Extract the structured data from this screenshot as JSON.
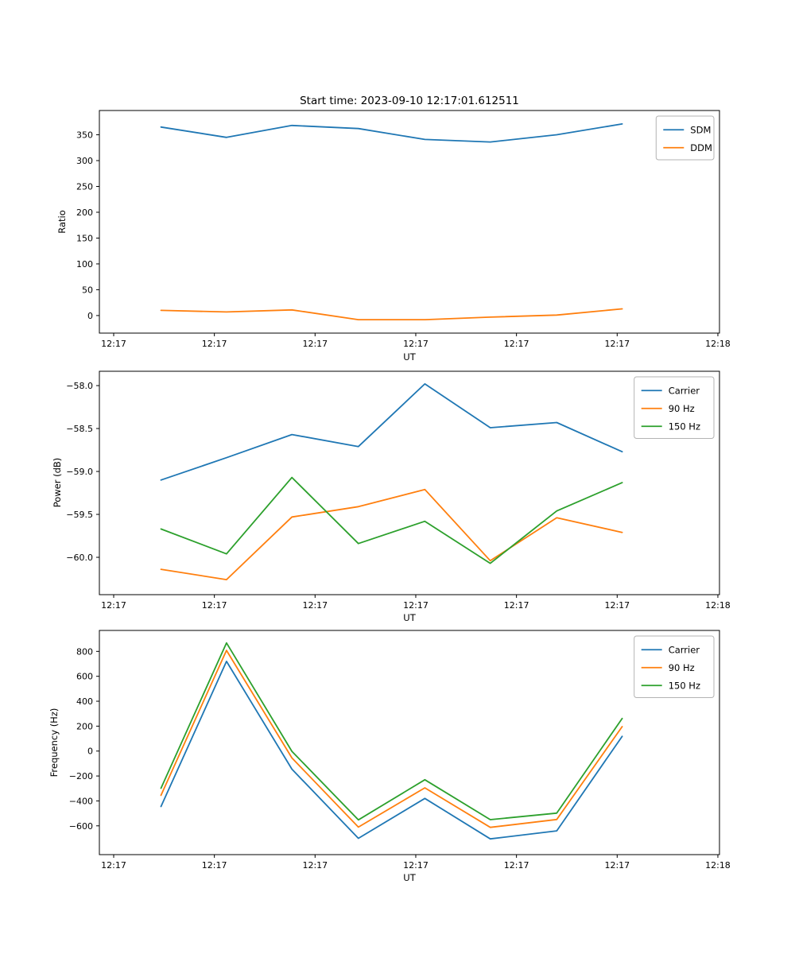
{
  "figure": {
    "title": "Start time: 2023-09-10 12:17:01.612511",
    "background": "#ffffff",
    "text_color": "#000000",
    "palette": {
      "blue": "#1f77b4",
      "orange": "#ff7f0e",
      "green": "#2ca02c"
    }
  },
  "chart_data": [
    {
      "type": "line",
      "name": "ratio",
      "xlabel": "UT",
      "ylabel": "Ratio",
      "xlim_seconds": [
        -1.42,
        60.16
      ],
      "ylim": [
        -34,
        397
      ],
      "x_ticks": {
        "seconds": [
          0,
          10,
          20,
          30,
          40,
          50,
          60
        ],
        "labels": [
          "12:17",
          "12:17",
          "12:17",
          "12:17",
          "12:17",
          "12:17",
          "12:18"
        ]
      },
      "y_ticks": {
        "values": [
          0,
          50,
          100,
          150,
          200,
          250,
          300,
          350
        ],
        "labels": [
          "0",
          "50",
          "100",
          "150",
          "200",
          "250",
          "300",
          "350"
        ]
      },
      "x_seconds": [
        4.7,
        11.2,
        17.7,
        24.3,
        30.9,
        37.4,
        44.0,
        50.5
      ],
      "legend_position": "top-right",
      "series": [
        {
          "name": "SDM",
          "color": "#1f77b4",
          "values": [
            365,
            345,
            368,
            362,
            341,
            336,
            350,
            371
          ]
        },
        {
          "name": "DDM",
          "color": "#ff7f0e",
          "values": [
            10,
            7,
            11,
            -8,
            -8,
            -3,
            1,
            13
          ]
        }
      ]
    },
    {
      "type": "line",
      "name": "power",
      "xlabel": "UT",
      "ylabel": "Power (dB)",
      "xlim_seconds": [
        -1.42,
        60.16
      ],
      "ylim": [
        -60.435,
        -57.833
      ],
      "x_ticks": {
        "seconds": [
          0,
          10,
          20,
          30,
          40,
          50,
          60
        ],
        "labels": [
          "12:17",
          "12:17",
          "12:17",
          "12:17",
          "12:17",
          "12:17",
          "12:18"
        ]
      },
      "y_ticks": {
        "values": [
          -60.0,
          -59.5,
          -59.0,
          -58.5,
          -58.0
        ],
        "labels": [
          "−60.0",
          "−59.5",
          "−59.0",
          "−58.5",
          "−58.0"
        ]
      },
      "x_seconds": [
        4.7,
        11.2,
        17.7,
        24.3,
        30.9,
        37.4,
        44.0,
        50.5
      ],
      "legend_position": "top-right",
      "series": [
        {
          "name": "Carrier",
          "color": "#1f77b4",
          "values": [
            -59.1,
            -58.84,
            -58.57,
            -58.71,
            -57.98,
            -58.49,
            -58.43,
            -58.77
          ]
        },
        {
          "name": "90 Hz",
          "color": "#ff7f0e",
          "values": [
            -60.14,
            -60.26,
            -59.53,
            -59.41,
            -59.21,
            -60.04,
            -59.54,
            -59.71
          ]
        },
        {
          "name": "150 Hz",
          "color": "#2ca02c",
          "values": [
            -59.67,
            -59.96,
            -59.07,
            -59.84,
            -59.58,
            -60.07,
            -59.46,
            -59.13
          ]
        }
      ]
    },
    {
      "type": "line",
      "name": "frequency",
      "xlabel": "UT",
      "ylabel": "Frequency (Hz)",
      "xlim_seconds": [
        -1.42,
        60.16
      ],
      "ylim": [
        -831,
        968
      ],
      "x_ticks": {
        "seconds": [
          0,
          10,
          20,
          30,
          40,
          50,
          60
        ],
        "labels": [
          "12:17",
          "12:17",
          "12:17",
          "12:17",
          "12:17",
          "12:17",
          "12:18"
        ]
      },
      "y_ticks": {
        "values": [
          -600,
          -400,
          -200,
          0,
          200,
          400,
          600,
          800
        ],
        "labels": [
          "−600",
          "−400",
          "−200",
          "0",
          "200",
          "400",
          "600",
          "800"
        ]
      },
      "x_seconds": [
        4.7,
        11.2,
        17.7,
        24.3,
        30.9,
        37.4,
        44.0,
        50.5
      ],
      "legend_position": "top-right",
      "series": [
        {
          "name": "Carrier",
          "color": "#1f77b4",
          "values": [
            -445,
            720,
            -145,
            -700,
            -380,
            -705,
            -640,
            118
          ]
        },
        {
          "name": "90 Hz",
          "color": "#ff7f0e",
          "values": [
            -355,
            808,
            -55,
            -610,
            -295,
            -612,
            -549,
            196
          ]
        },
        {
          "name": "150 Hz",
          "color": "#2ca02c",
          "values": [
            -298,
            868,
            -2,
            -552,
            -230,
            -550,
            -498,
            262
          ]
        }
      ]
    }
  ]
}
